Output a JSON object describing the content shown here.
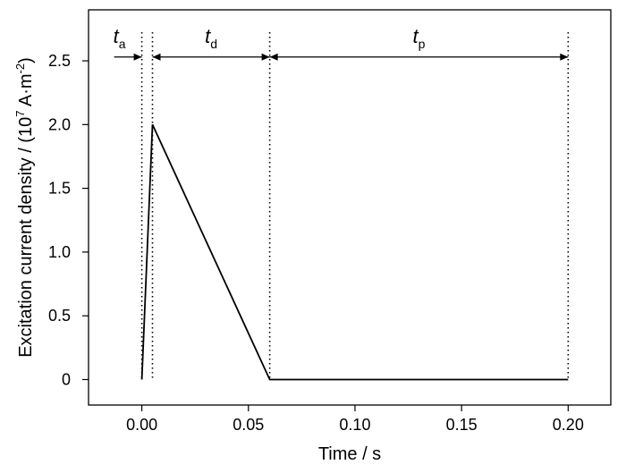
{
  "chart_data": {
    "type": "line",
    "xlabel": "Time / s",
    "ylabel_main": "Excitation current density / (10",
    "ylabel_exp": "7",
    "ylabel_unit": " A·m",
    "ylabel_unit_exp": "-2",
    "ylabel_close": ")",
    "xlim": [
      -0.025,
      0.22
    ],
    "ylim": [
      -0.2,
      2.9
    ],
    "x_ticks": [
      0.0,
      0.05,
      0.1,
      0.15,
      0.2
    ],
    "x_tick_labels": [
      "0.00",
      "0.05",
      "0.10",
      "0.15",
      "0.20"
    ],
    "y_ticks": [
      0,
      0.5,
      1.0,
      1.5,
      2.0,
      2.5
    ],
    "y_tick_labels": [
      "0",
      "0.5",
      "1.0",
      "1.5",
      "2.0",
      "2.5"
    ],
    "grid": false,
    "series": [
      {
        "x": [
          0.0,
          0.005,
          0.06,
          0.2
        ],
        "y": [
          0,
          2.0,
          0,
          0
        ]
      }
    ],
    "vlines": [
      0.0,
      0.005,
      0.06,
      0.2
    ],
    "arrow_y": 2.53,
    "annotations": [
      {
        "main": "t",
        "sub": "a",
        "x_from": -0.013,
        "x_to": 0.0
      },
      {
        "main": "t",
        "sub": "d",
        "x_from": 0.005,
        "x_to": 0.06
      },
      {
        "main": "t",
        "sub": "p",
        "x_from": 0.06,
        "x_to": 0.2
      }
    ]
  }
}
